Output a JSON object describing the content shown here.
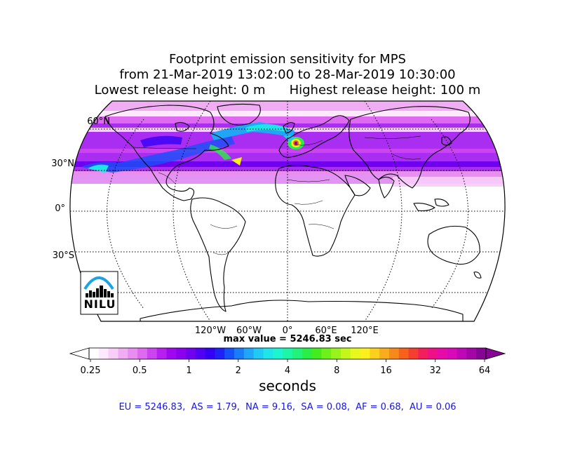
{
  "title": {
    "line1": "Footprint emission sensitivity for MPS",
    "line2": "from 21-Mar-2019 13:02:00 to 28-Mar-2019 10:30:00",
    "line3a": "Lowest release height: 0 m",
    "line3b": "Highest release height: 100 m"
  },
  "map": {
    "projection": "robinson",
    "lat_labels": [
      "60°N",
      "30°N",
      "0°",
      "30°S"
    ],
    "lon_labels": [
      "120°W",
      "60°W",
      "0°",
      "60°E",
      "120°E"
    ],
    "max_value_text": "max value = 5246.83 sec"
  },
  "logo": {
    "text": "NILU"
  },
  "colorbar": {
    "tick_labels": [
      "0.25",
      "0.5",
      "1",
      "2",
      "4",
      "8",
      "16",
      "32",
      "64"
    ],
    "units": "seconds",
    "colors": [
      "#ffffff",
      "#fde8fd",
      "#f8cdf8",
      "#f0adf3",
      "#e98df0",
      "#de6aef",
      "#cc44f0",
      "#b61ff0",
      "#9e08f0",
      "#8a00ef",
      "#7000f0",
      "#5000f2",
      "#3300f5",
      "#1e22f7",
      "#1650f8",
      "#1a7cf8",
      "#1fa6f8",
      "#21c9f5",
      "#1ee6e8",
      "#1cf5cf",
      "#1cf6a6",
      "#20f27a",
      "#2aee48",
      "#43ec1e",
      "#6ef01a",
      "#98f41a",
      "#c3f71a",
      "#e7f91c",
      "#fbef1c",
      "#fbd01c",
      "#f9ad1c",
      "#f7881c",
      "#f6621c",
      "#f43e30",
      "#f21f5b",
      "#ef0f86",
      "#e80aa8",
      "#d809b8",
      "#bf07b8",
      "#a305a6",
      "#860594"
    ]
  },
  "region_values": {
    "text": "EU = 5246.83,  AS = 1.79,  NA = 9.16,  SA = 0.08,  AF = 0.68,  AU = 0.06"
  }
}
